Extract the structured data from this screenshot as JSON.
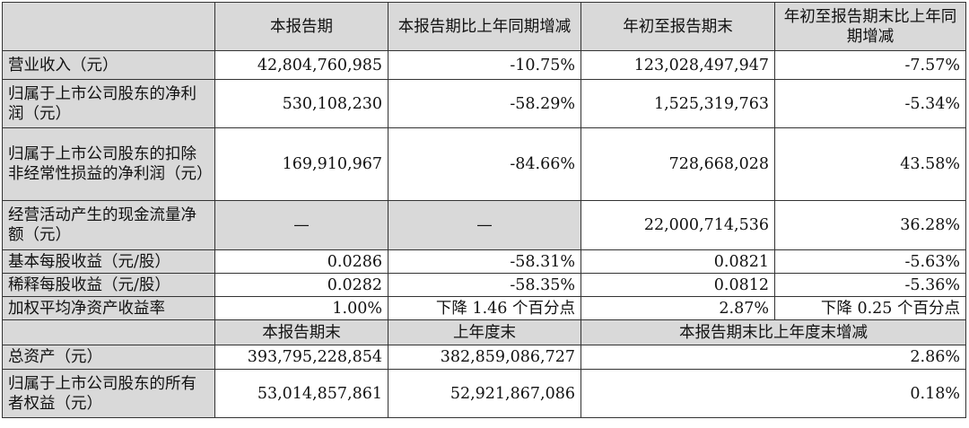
{
  "header": {
    "blank": "",
    "col1": "本报告期",
    "col2": "本报告期比上年同期增减",
    "col3": "年初至报告期末",
    "col4": "年初至报告期末比上年同期增减"
  },
  "rows": [
    {
      "label": "营业收入（元）",
      "v1": "42,804,760,985",
      "v2": "-10.75%",
      "v3": "123,028,497,947",
      "v4": "-7.57%"
    },
    {
      "label": "归属于上市公司股东的净利润（元）",
      "v1": "530,108,230",
      "v2": "-58.29%",
      "v3": "1,525,319,763",
      "v4": "-5.34%"
    },
    {
      "label": "归属于上市公司股东的扣除非经常性损益的净利润（元）",
      "v1": "169,910,967",
      "v2": "-84.66%",
      "v3": "728,668,028",
      "v4": "43.58%"
    },
    {
      "label": "经营活动产生的现金流量净额（元）",
      "v1": "—",
      "v2": "—",
      "v3": "22,000,714,536",
      "v4": "36.28%"
    },
    {
      "label": "基本每股收益（元/股）",
      "v1": "0.0286",
      "v2": "-58.31%",
      "v3": "0.0821",
      "v4": "-5.63%"
    },
    {
      "label": "稀释每股收益（元/股）",
      "v1": "0.0282",
      "v2": "-58.35%",
      "v3": "0.0812",
      "v4": "-5.36%"
    },
    {
      "label": "加权平均净资产收益率",
      "v1": "1.00%",
      "v2": "下降 1.46 个百分点",
      "v3": "2.87%",
      "v4": "下降 0.25 个百分点"
    }
  ],
  "header2": {
    "col1": "本报告期末",
    "col2": "上年度末",
    "col3": "本报告期末比上年度末增减"
  },
  "rows2": [
    {
      "label": "总资产（元）",
      "v1": "393,795,228,854",
      "v2": "382,859,086,727",
      "v3": "2.86%"
    },
    {
      "label": "归属于上市公司股东的所有者权益（元）",
      "v1": "53,014,857,861",
      "v2": "52,921,867,086",
      "v3": "0.18%"
    }
  ]
}
